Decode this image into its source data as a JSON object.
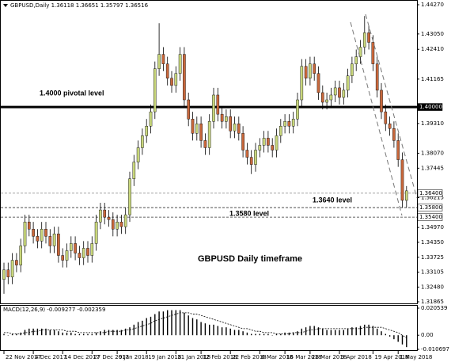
{
  "chart_data": {
    "type": "candlestick",
    "title": "GBPUSD,Daily  1.36118 1.36651 1.35797 1.36516",
    "annotation": "GBPUSD Daily timeframe",
    "up_color": "#c9d77c",
    "down_color": "#c9683c",
    "categories": [
      "22 Nov 2017",
      null,
      null,
      null,
      null,
      null,
      null,
      "4 Dec 2017",
      null,
      null,
      null,
      null,
      null,
      null,
      "14 Dec 2017",
      null,
      null,
      null,
      null,
      null,
      null,
      "27 Dec 2017",
      null,
      null,
      null,
      null,
      null,
      "9 Jan 2018",
      null,
      null,
      null,
      null,
      null,
      null,
      "19 Jan 2018",
      null,
      null,
      null,
      null,
      null,
      null,
      "31 Jan 2018",
      null,
      null,
      null,
      null,
      null,
      "12 Feb 2018",
      null,
      null,
      null,
      null,
      null,
      null,
      "22 Feb 2018",
      null,
      null,
      null,
      null,
      null,
      null,
      "6 Mar 2018",
      null,
      null,
      null,
      null,
      null,
      "16 Mar 2018",
      null,
      null,
      null,
      null,
      null,
      "28 Mar 2018",
      null,
      null,
      null,
      null,
      null,
      null,
      "9 Apr 2018",
      null,
      null,
      null,
      null,
      null,
      null,
      null,
      "19 Apr 2018",
      null,
      null,
      null,
      null,
      null,
      "1 May 2018",
      null,
      null
    ],
    "open": [
      1.328,
      1.332,
      1.329,
      1.336,
      1.334,
      1.342,
      1.352,
      1.349,
      1.346,
      1.344,
      1.349,
      1.346,
      1.342,
      1.347,
      1.338,
      1.336,
      1.34,
      1.343,
      1.339,
      1.337,
      1.341,
      1.338,
      1.343,
      1.352,
      1.357,
      1.354,
      1.353,
      1.349,
      1.352,
      1.35,
      1.355,
      1.37,
      1.377,
      1.383,
      1.388,
      1.392,
      1.398,
      1.416,
      1.422,
      1.418,
      1.412,
      1.409,
      1.414,
      1.422,
      1.403,
      1.395,
      1.389,
      1.393,
      1.386,
      1.383,
      1.394,
      1.405,
      1.397,
      1.394,
      1.396,
      1.39,
      1.393,
      1.389,
      1.382,
      1.379,
      1.376,
      1.382,
      1.384,
      1.387,
      1.384,
      1.382,
      1.388,
      1.392,
      1.394,
      1.392,
      1.395,
      1.403,
      1.417,
      1.412,
      1.418,
      1.414,
      1.406,
      1.402,
      1.403,
      1.405,
      1.408,
      1.404,
      1.407,
      1.413,
      1.418,
      1.421,
      1.425,
      1.431,
      1.427,
      1.418,
      1.407,
      1.398,
      1.393,
      1.391,
      1.386,
      1.378,
      1.361
    ],
    "high": [
      1.335,
      1.335,
      1.339,
      1.339,
      1.345,
      1.355,
      1.355,
      1.352,
      1.349,
      1.352,
      1.352,
      1.349,
      1.35,
      1.35,
      1.341,
      1.343,
      1.346,
      1.346,
      1.342,
      1.344,
      1.344,
      1.346,
      1.355,
      1.36,
      1.36,
      1.357,
      1.356,
      1.355,
      1.355,
      1.358,
      1.373,
      1.38,
      1.386,
      1.391,
      1.395,
      1.401,
      1.419,
      1.435,
      1.425,
      1.421,
      1.415,
      1.417,
      1.425,
      1.425,
      1.406,
      1.398,
      1.396,
      1.396,
      1.389,
      1.397,
      1.408,
      1.408,
      1.4,
      1.399,
      1.399,
      1.396,
      1.396,
      1.392,
      1.385,
      1.382,
      1.385,
      1.387,
      1.39,
      1.39,
      1.387,
      1.391,
      1.395,
      1.397,
      1.397,
      1.398,
      1.406,
      1.42,
      1.42,
      1.421,
      1.421,
      1.417,
      1.409,
      1.406,
      1.408,
      1.411,
      1.411,
      1.41,
      1.416,
      1.421,
      1.424,
      1.428,
      1.438,
      1.434,
      1.43,
      1.421,
      1.41,
      1.401,
      1.396,
      1.394,
      1.389,
      1.381,
      1.367
    ],
    "low": [
      1.322,
      1.326,
      1.326,
      1.331,
      1.331,
      1.339,
      1.346,
      1.343,
      1.341,
      1.341,
      1.343,
      1.339,
      1.339,
      1.335,
      1.333,
      1.333,
      1.337,
      1.336,
      1.334,
      1.334,
      1.335,
      1.335,
      1.34,
      1.349,
      1.351,
      1.35,
      1.346,
      1.346,
      1.347,
      1.347,
      1.352,
      1.367,
      1.374,
      1.38,
      1.385,
      1.389,
      1.395,
      1.413,
      1.415,
      1.409,
      1.406,
      1.406,
      1.411,
      1.4,
      1.392,
      1.386,
      1.386,
      1.383,
      1.38,
      1.38,
      1.391,
      1.394,
      1.391,
      1.391,
      1.387,
      1.387,
      1.386,
      1.379,
      1.376,
      1.372,
      1.373,
      1.379,
      1.381,
      1.381,
      1.379,
      1.379,
      1.385,
      1.389,
      1.389,
      1.389,
      1.392,
      1.4,
      1.409,
      1.409,
      1.411,
      1.403,
      1.399,
      1.399,
      1.4,
      1.402,
      1.401,
      1.401,
      1.404,
      1.41,
      1.415,
      1.418,
      1.422,
      1.424,
      1.415,
      1.404,
      1.395,
      1.39,
      1.388,
      1.383,
      1.375,
      1.358,
      1.358
    ],
    "close": [
      1.332,
      1.329,
      1.336,
      1.334,
      1.342,
      1.352,
      1.349,
      1.346,
      1.344,
      1.349,
      1.346,
      1.342,
      1.347,
      1.338,
      1.336,
      1.34,
      1.343,
      1.339,
      1.337,
      1.341,
      1.338,
      1.343,
      1.352,
      1.357,
      1.354,
      1.353,
      1.349,
      1.352,
      1.35,
      1.355,
      1.37,
      1.377,
      1.383,
      1.388,
      1.392,
      1.398,
      1.416,
      1.422,
      1.418,
      1.412,
      1.409,
      1.414,
      1.422,
      1.403,
      1.395,
      1.389,
      1.393,
      1.386,
      1.383,
      1.394,
      1.405,
      1.397,
      1.394,
      1.396,
      1.39,
      1.393,
      1.389,
      1.382,
      1.379,
      1.376,
      1.382,
      1.384,
      1.387,
      1.384,
      1.382,
      1.388,
      1.392,
      1.394,
      1.392,
      1.395,
      1.403,
      1.417,
      1.412,
      1.418,
      1.414,
      1.406,
      1.402,
      1.403,
      1.405,
      1.408,
      1.404,
      1.407,
      1.413,
      1.418,
      1.421,
      1.425,
      1.431,
      1.427,
      1.418,
      1.407,
      1.398,
      1.393,
      1.391,
      1.386,
      1.378,
      1.361,
      1.365
    ],
    "ylim": [
      1.31865,
      1.4427
    ],
    "yticks": [
      {
        "value": 1.4427,
        "label": "1.44270"
      },
      {
        "value": 1.4305,
        "label": "1.43050"
      },
      {
        "value": 1.4241,
        "label": "1.42410"
      },
      1.41165,
      {
        "value": 1.3931,
        "label": "1.39310"
      },
      {
        "value": 1.3807,
        "label": "1.38070"
      },
      1.37445,
      1.36215,
      {
        "value": 1.3497,
        "label": "1.34970"
      },
      {
        "value": 1.3435,
        "label": "1.34350"
      },
      1.33725,
      1.33105,
      {
        "value": 1.3248,
        "label": "1.32480"
      },
      1.31865
    ],
    "levels": [
      {
        "value": 1.4,
        "axis_label": "1.40000",
        "label": "1.4000 pivotal level",
        "color": "#000000"
      },
      {
        "value": 1.364,
        "axis_label": "1.36400",
        "label": "1.3640 level",
        "color": "#888888"
      },
      {
        "value": 1.358,
        "axis_label": "1.35800",
        "label": "1.3580 level",
        "color": "#333333"
      },
      {
        "value": 1.354,
        "axis_label": "1.35400",
        "color": "#333333"
      }
    ],
    "macd": {
      "label": "MACD(12,26,9) -0.009277 -0.002359",
      "ylim": [
        -0.010697,
        0.020539
      ],
      "yticks": [
        0.020539,
        {
          "value": 0,
          "label": "0.00"
        },
        -0.010697
      ],
      "values": [
        0.001,
        0.0,
        0.001,
        0.001,
        0.002,
        0.004,
        0.005,
        0.005,
        0.005,
        0.005,
        0.005,
        0.004,
        0.004,
        0.003,
        0.002,
        0.002,
        0.002,
        0.001,
        0.001,
        0.001,
        0.001,
        0.001,
        0.002,
        0.003,
        0.004,
        0.004,
        0.004,
        0.004,
        0.004,
        0.005,
        0.006,
        0.008,
        0.01,
        0.011,
        0.013,
        0.014,
        0.016,
        0.018,
        0.018,
        0.019,
        0.019,
        0.019,
        0.019,
        0.017,
        0.015,
        0.013,
        0.012,
        0.01,
        0.009,
        0.008,
        0.008,
        0.007,
        0.006,
        0.006,
        0.005,
        0.004,
        0.004,
        0.003,
        0.002,
        0.001,
        0.001,
        0.001,
        0.001,
        0.001,
        0.0,
        0.001,
        0.001,
        0.002,
        0.002,
        0.002,
        0.003,
        0.005,
        0.006,
        0.007,
        0.007,
        0.006,
        0.005,
        0.004,
        0.004,
        0.004,
        0.004,
        0.004,
        0.005,
        0.006,
        0.006,
        0.007,
        0.008,
        0.008,
        0.007,
        0.005,
        0.003,
        0.001,
        -0.001,
        -0.003,
        -0.005,
        -0.007,
        -0.009
      ],
      "signal": [
        0.002,
        0.002,
        0.001,
        0.001,
        0.001,
        0.002,
        0.002,
        0.003,
        0.003,
        0.004,
        0.004,
        0.004,
        0.004,
        0.004,
        0.004,
        0.003,
        0.003,
        0.003,
        0.002,
        0.002,
        0.002,
        0.002,
        0.002,
        0.002,
        0.002,
        0.003,
        0.003,
        0.003,
        0.003,
        0.004,
        0.004,
        0.005,
        0.006,
        0.007,
        0.008,
        0.009,
        0.011,
        0.012,
        0.013,
        0.014,
        0.015,
        0.016,
        0.017,
        0.017,
        0.017,
        0.016,
        0.016,
        0.015,
        0.014,
        0.013,
        0.012,
        0.011,
        0.01,
        0.009,
        0.008,
        0.007,
        0.006,
        0.005,
        0.005,
        0.004,
        0.003,
        0.003,
        0.002,
        0.002,
        0.002,
        0.001,
        0.001,
        0.001,
        0.001,
        0.002,
        0.002,
        0.002,
        0.003,
        0.004,
        0.004,
        0.005,
        0.005,
        0.005,
        0.005,
        0.005,
        0.005,
        0.005,
        0.005,
        0.005,
        0.005,
        0.005,
        0.006,
        0.006,
        0.006,
        0.006,
        0.006,
        0.005,
        0.004,
        0.003,
        0.002,
        0.0,
        -0.002
      ]
    }
  }
}
